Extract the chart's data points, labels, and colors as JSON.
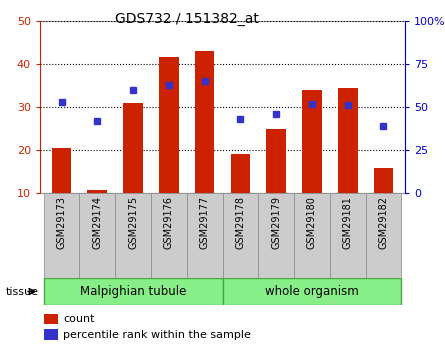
{
  "title": "GDS732 / 151382_at",
  "samples": [
    "GSM29173",
    "GSM29174",
    "GSM29175",
    "GSM29176",
    "GSM29177",
    "GSM29178",
    "GSM29179",
    "GSM29180",
    "GSM29181",
    "GSM29182"
  ],
  "counts": [
    20.5,
    10.8,
    31.0,
    41.5,
    43.0,
    19.2,
    25.0,
    34.0,
    34.5,
    15.8
  ],
  "percentile_ranks": [
    53,
    42,
    60,
    63,
    65,
    43,
    46,
    52,
    51,
    39
  ],
  "tissue_groups": [
    {
      "label": "Malpighian tubule",
      "start": 0,
      "end": 5
    },
    {
      "label": "whole organism",
      "start": 5,
      "end": 10
    }
  ],
  "ylim_left": [
    10,
    50
  ],
  "ylim_right": [
    0,
    100
  ],
  "yticks_left": [
    10,
    20,
    30,
    40,
    50
  ],
  "yticks_right": [
    0,
    25,
    50,
    75,
    100
  ],
  "bar_color": "#cc2200",
  "dot_color": "#3333cc",
  "bar_bottom": 10,
  "legend_count_label": "count",
  "legend_percentile_label": "percentile rank within the sample",
  "tissue_label": "tissue",
  "tissue_bg_color": "#88ee88",
  "tissue_border_color": "#44aa44",
  "sample_bg_color": "#cccccc",
  "grid_color": "#000000",
  "right_axis_color": "#0000cc",
  "left_axis_color": "#cc2200",
  "figsize": [
    4.45,
    3.45
  ],
  "dpi": 100
}
